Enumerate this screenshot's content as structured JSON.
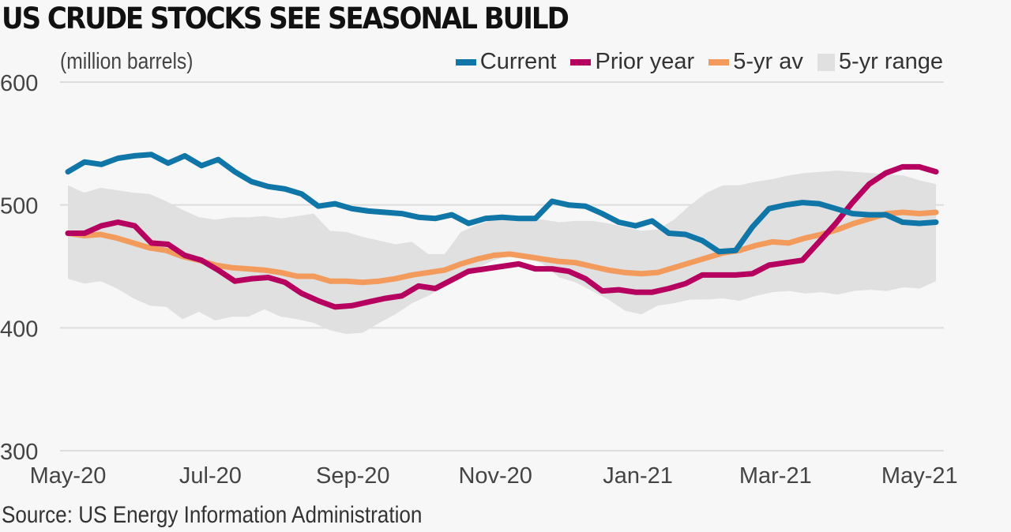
{
  "chart_data": {
    "type": "line",
    "title": "US CRUDE STOCKS SEE SEASONAL BUILD",
    "ylabel": "(million barrels)",
    "xlabel": "",
    "source": "Source: US Energy Information Administration",
    "ylim": [
      300,
      600
    ],
    "yticks": [
      300,
      400,
      500,
      600
    ],
    "ytick_labels": [
      "300",
      "400",
      "500",
      "600"
    ],
    "xtick_labels": [
      "May-20",
      "Jul-20",
      "Sep-20",
      "Nov-20",
      "Jan-21",
      "Mar-21",
      "May-21"
    ],
    "xtick_weeks": [
      0,
      8.7,
      17.4,
      26.1,
      34.8,
      43.2,
      52
    ],
    "grid": true,
    "legend_position": "top-right",
    "n_weeks": 54,
    "colors": {
      "current": "#0f76a7",
      "prior": "#b5005f",
      "avg": "#f29b5c",
      "range": "#e0e0e0",
      "grid": "#dddddd",
      "background": "#f7f7f7"
    },
    "series": [
      {
        "key": "current",
        "name": "Current",
        "values": [
          527,
          535,
          533,
          538,
          540,
          541,
          534,
          540,
          532,
          537,
          527,
          519,
          515,
          513,
          509,
          499,
          501,
          497,
          495,
          494,
          493,
          490,
          489,
          492,
          485,
          489,
          490,
          489,
          489,
          503,
          500,
          499,
          493,
          486,
          483,
          487,
          477,
          476,
          471,
          462,
          463,
          482,
          497,
          500,
          502,
          501,
          497,
          493,
          492,
          492,
          486,
          485,
          486
        ]
      },
      {
        "key": "prior",
        "name": "Prior year",
        "values": [
          477,
          477,
          483,
          486,
          483,
          469,
          468,
          459,
          455,
          447,
          438,
          440,
          441,
          437,
          428,
          422,
          417,
          418,
          421,
          424,
          426,
          434,
          432,
          439,
          446,
          448,
          450,
          452,
          448,
          448,
          446,
          440,
          430,
          431,
          429,
          429,
          432,
          436,
          443,
          443,
          443,
          444,
          451,
          453,
          455,
          470,
          485,
          502,
          517,
          526,
          531,
          531,
          527
        ]
      },
      {
        "key": "avg",
        "name": "5-yr av",
        "values": [
          477,
          475,
          476,
          473,
          469,
          465,
          463,
          458,
          455,
          451,
          449,
          448,
          447,
          445,
          442,
          442,
          438,
          438,
          437,
          438,
          440,
          443,
          445,
          447,
          452,
          456,
          459,
          460,
          458,
          456,
          454,
          453,
          450,
          447,
          445,
          444,
          445,
          449,
          453,
          457,
          461,
          463,
          467,
          470,
          469,
          473,
          476,
          480,
          485,
          489,
          493,
          494,
          493,
          494
        ]
      },
      {
        "key": "range_high",
        "name": "5-yr range (high)",
        "values": [
          516,
          510,
          514,
          512,
          510,
          509,
          503,
          496,
          490,
          488,
          490,
          490,
          491,
          489,
          491,
          493,
          479,
          478,
          474,
          471,
          468,
          470,
          460,
          460,
          478,
          484,
          488,
          489,
          489,
          488,
          486,
          487,
          487,
          485,
          482,
          479,
          480,
          488,
          500,
          510,
          516,
          516,
          519,
          521,
          524,
          526,
          527,
          528,
          527,
          526,
          525,
          524,
          520,
          517
        ]
      },
      {
        "key": "range_low",
        "name": "5-yr range (low)",
        "values": [
          440,
          436,
          438,
          432,
          424,
          418,
          417,
          407,
          413,
          406,
          409,
          409,
          415,
          409,
          407,
          404,
          398,
          395,
          396,
          404,
          411,
          420,
          426,
          434,
          441,
          449,
          455,
          459,
          458,
          452,
          441,
          437,
          430,
          423,
          414,
          411,
          418,
          420,
          423,
          423,
          424,
          422,
          426,
          429,
          430,
          428,
          429,
          427,
          430,
          431,
          430,
          433,
          432,
          438
        ]
      }
    ]
  },
  "legend": {
    "items": [
      {
        "key": "current",
        "label": "Current"
      },
      {
        "key": "prior",
        "label": "Prior year"
      },
      {
        "key": "avg",
        "label": "5-yr av"
      },
      {
        "key": "range",
        "label": "5-yr range"
      }
    ]
  }
}
